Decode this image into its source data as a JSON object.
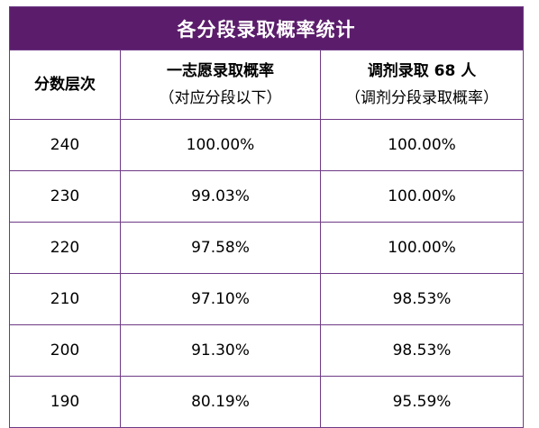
{
  "title": "各分段录取概率统计",
  "headers": {
    "col1": "分数层次",
    "col2_line1": "一志愿录取概率",
    "col2_line2": "（对应分段以下）",
    "col3_line1": "调剂录取 68 人",
    "col3_line2": "（调剂分段录取概率）"
  },
  "rows": [
    {
      "score": "240",
      "first_choice": "100.00%",
      "adjustment": "100.00%"
    },
    {
      "score": "230",
      "first_choice": "99.03%",
      "adjustment": "100.00%"
    },
    {
      "score": "220",
      "first_choice": "97.58%",
      "adjustment": "100.00%"
    },
    {
      "score": "210",
      "first_choice": "97.10%",
      "adjustment": "98.53%"
    },
    {
      "score": "200",
      "first_choice": "91.30%",
      "adjustment": "98.53%"
    },
    {
      "score": "190",
      "first_choice": "80.19%",
      "adjustment": "95.59%"
    }
  ],
  "colors": {
    "header_bg": "#5b1d6b",
    "border": "#6e3a86"
  }
}
